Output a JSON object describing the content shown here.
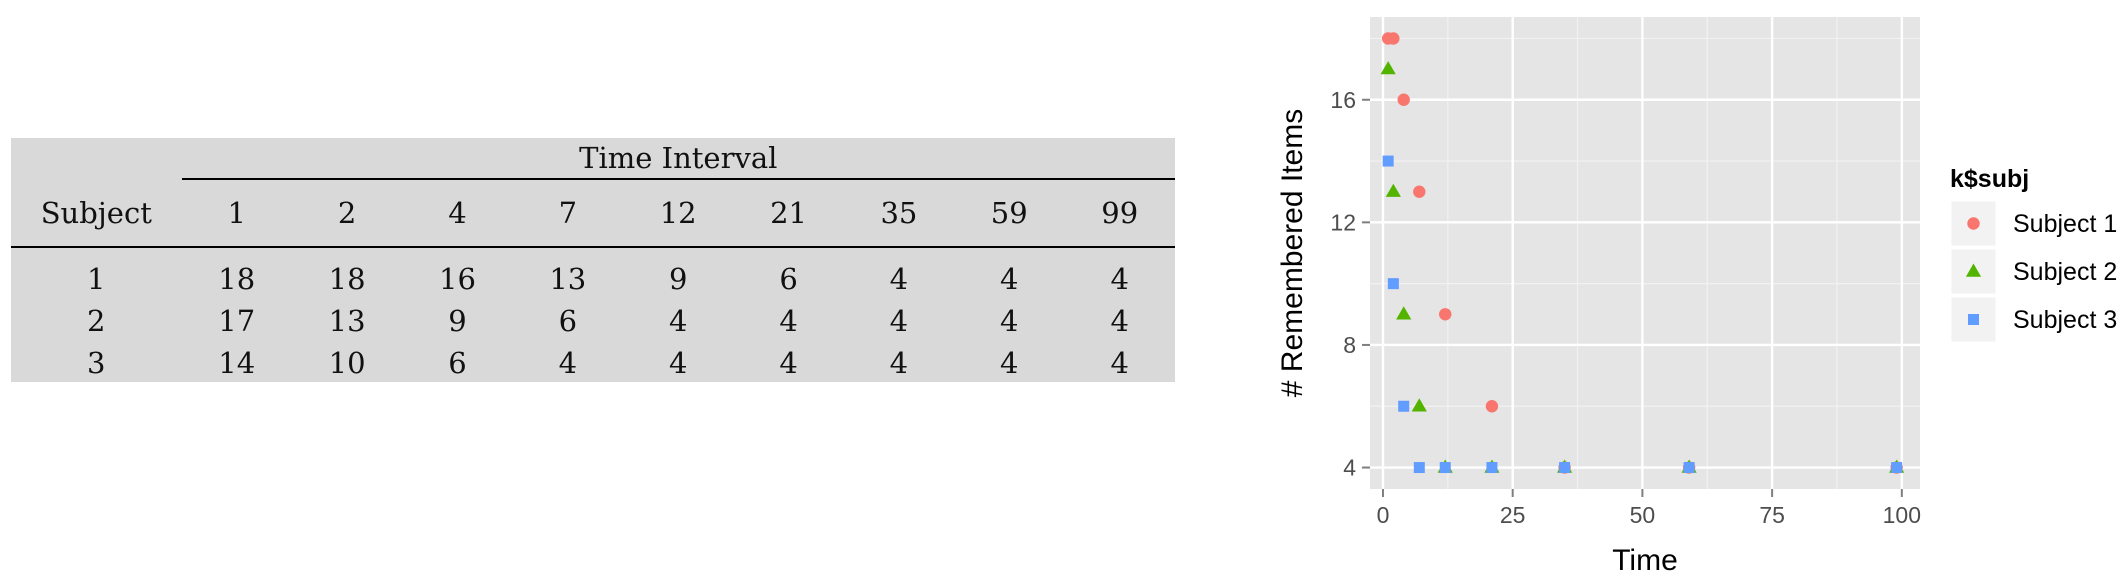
{
  "table": {
    "group_header": "Time Interval",
    "row_header": "Subject",
    "columns": [
      "1",
      "2",
      "4",
      "7",
      "12",
      "21",
      "35",
      "59",
      "99"
    ],
    "rows": [
      {
        "subject": "1",
        "values": [
          "18",
          "18",
          "16",
          "13",
          "9",
          "6",
          "4",
          "4",
          "4"
        ]
      },
      {
        "subject": "2",
        "values": [
          "17",
          "13",
          "9",
          "6",
          "4",
          "4",
          "4",
          "4",
          "4"
        ]
      },
      {
        "subject": "3",
        "values": [
          "14",
          "10",
          "6",
          "4",
          "4",
          "4",
          "4",
          "4",
          "4"
        ]
      }
    ]
  },
  "chart_data": {
    "type": "scatter",
    "title": "",
    "xlabel": "Time",
    "ylabel": "# Remembered Items",
    "xlim": [
      -2.5,
      103.5
    ],
    "ylim": [
      3.3,
      18.7
    ],
    "xticks": [
      0,
      25,
      50,
      75,
      100
    ],
    "yticks": [
      4,
      8,
      12,
      16
    ],
    "grid": true,
    "legend": {
      "title": "k$subj",
      "position": "right"
    },
    "x": [
      1,
      2,
      4,
      7,
      12,
      21,
      35,
      59,
      99
    ],
    "series": [
      {
        "name": "Subject 1",
        "shape": "circle",
        "color": "#F8766D",
        "values": [
          18,
          18,
          16,
          13,
          9,
          6,
          4,
          4,
          4
        ]
      },
      {
        "name": "Subject 2",
        "shape": "triangle",
        "color": "#53B400",
        "values": [
          17,
          13,
          9,
          6,
          4,
          4,
          4,
          4,
          4
        ]
      },
      {
        "name": "Subject 3",
        "shape": "square",
        "color": "#619CFF",
        "values": [
          14,
          10,
          6,
          4,
          4,
          4,
          4,
          4,
          4
        ]
      }
    ]
  }
}
